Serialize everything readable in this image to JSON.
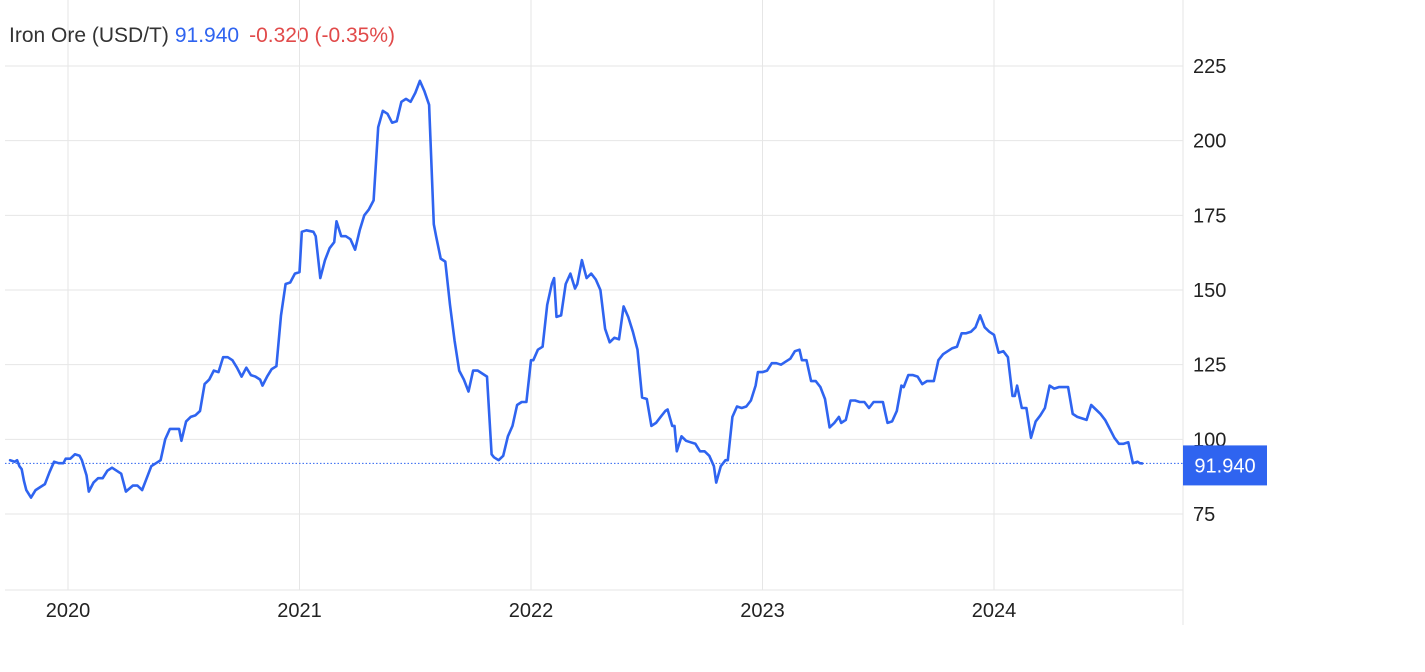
{
  "header": {
    "name": "Iron Ore (USD/T)",
    "price": "91.940",
    "change": "-0.320 (-0.35%)"
  },
  "colors": {
    "line": "#2f64f0",
    "grid": "#e6e6e6",
    "label_bg": "#2f64f0",
    "negative": "#e14a4a"
  },
  "chart_data": {
    "type": "line",
    "title": "Iron Ore (USD/T)",
    "xlabel": "",
    "ylabel": "",
    "grid": true,
    "legend": "none",
    "ylim": [
      55,
      245
    ],
    "xlim": [
      2019.75,
      2024.97
    ],
    "y_ticks": [
      75,
      100,
      125,
      150,
      175,
      200,
      225
    ],
    "y_tick_labels": [
      "75",
      "100",
      "125",
      "150",
      "175",
      "200",
      "225"
    ],
    "x_ticks": [
      2020,
      2021,
      2022,
      2023,
      2024
    ],
    "x_tick_labels": [
      "2020",
      "2021",
      "2022",
      "2023",
      "2024"
    ],
    "last_value": 91.94,
    "last_value_label": "91.940",
    "series": [
      {
        "values": [
          [
            2019.75,
            93
          ],
          [
            2019.77,
            92.5
          ],
          [
            2019.78,
            93
          ],
          [
            2019.79,
            91
          ],
          [
            2019.8,
            90
          ],
          [
            2019.81,
            86
          ],
          [
            2019.82,
            83
          ],
          [
            2019.84,
            80.5
          ],
          [
            2019.86,
            83
          ],
          [
            2019.88,
            84
          ],
          [
            2019.9,
            85
          ],
          [
            2019.92,
            89
          ],
          [
            2019.94,
            92.5
          ],
          [
            2019.96,
            92
          ],
          [
            2019.98,
            92
          ],
          [
            2019.99,
            93.5
          ],
          [
            2020.01,
            93.5
          ],
          [
            2020.03,
            95
          ],
          [
            2020.05,
            94.5
          ],
          [
            2020.06,
            93
          ],
          [
            2020.08,
            88
          ],
          [
            2020.09,
            82.5
          ],
          [
            2020.11,
            85.5
          ],
          [
            2020.13,
            87
          ],
          [
            2020.15,
            87
          ],
          [
            2020.17,
            89.5
          ],
          [
            2020.19,
            90.5
          ],
          [
            2020.21,
            89.5
          ],
          [
            2020.23,
            88.5
          ],
          [
            2020.25,
            82.5
          ],
          [
            2020.28,
            84.5
          ],
          [
            2020.3,
            84.5
          ],
          [
            2020.32,
            83
          ],
          [
            2020.34,
            87
          ],
          [
            2020.36,
            91
          ],
          [
            2020.38,
            92
          ],
          [
            2020.4,
            93
          ],
          [
            2020.42,
            100
          ],
          [
            2020.44,
            103.5
          ],
          [
            2020.46,
            103.5
          ],
          [
            2020.48,
            103.5
          ],
          [
            2020.49,
            99.5
          ],
          [
            2020.51,
            106
          ],
          [
            2020.53,
            107.5
          ],
          [
            2020.55,
            108
          ],
          [
            2020.57,
            109.5
          ],
          [
            2020.59,
            118.5
          ],
          [
            2020.61,
            120
          ],
          [
            2020.63,
            123
          ],
          [
            2020.65,
            122.5
          ],
          [
            2020.67,
            127.5
          ],
          [
            2020.69,
            127.5
          ],
          [
            2020.71,
            126.5
          ],
          [
            2020.73,
            124
          ],
          [
            2020.75,
            121
          ],
          [
            2020.77,
            124
          ],
          [
            2020.79,
            121.5
          ],
          [
            2020.81,
            121
          ],
          [
            2020.83,
            120
          ],
          [
            2020.84,
            118
          ],
          [
            2020.86,
            121
          ],
          [
            2020.88,
            123.5
          ],
          [
            2020.9,
            124.5
          ],
          [
            2020.92,
            141.5
          ],
          [
            2020.94,
            152
          ],
          [
            2020.96,
            152.5
          ],
          [
            2020.98,
            155.5
          ],
          [
            2021.0,
            156
          ],
          [
            2021.01,
            169.5
          ],
          [
            2021.03,
            170
          ],
          [
            2021.06,
            169.5
          ],
          [
            2021.07,
            168
          ],
          [
            2021.09,
            154
          ],
          [
            2021.11,
            160
          ],
          [
            2021.13,
            164
          ],
          [
            2021.15,
            166
          ],
          [
            2021.16,
            173
          ],
          [
            2021.18,
            168
          ],
          [
            2021.2,
            168
          ],
          [
            2021.22,
            167
          ],
          [
            2021.24,
            163.5
          ],
          [
            2021.26,
            170
          ],
          [
            2021.28,
            175
          ],
          [
            2021.3,
            177
          ],
          [
            2021.32,
            180
          ],
          [
            2021.34,
            204.5
          ],
          [
            2021.36,
            210
          ],
          [
            2021.38,
            209
          ],
          [
            2021.4,
            206
          ],
          [
            2021.42,
            206.5
          ],
          [
            2021.44,
            213
          ],
          [
            2021.46,
            214
          ],
          [
            2021.48,
            213
          ],
          [
            2021.5,
            216
          ],
          [
            2021.52,
            220
          ],
          [
            2021.54,
            216.5
          ],
          [
            2021.56,
            212
          ],
          [
            2021.58,
            172
          ],
          [
            2021.59,
            168
          ],
          [
            2021.61,
            160.5
          ],
          [
            2021.63,
            159.5
          ],
          [
            2021.65,
            145
          ],
          [
            2021.67,
            133
          ],
          [
            2021.69,
            123
          ],
          [
            2021.71,
            120
          ],
          [
            2021.73,
            116
          ],
          [
            2021.75,
            123
          ],
          [
            2021.77,
            123
          ],
          [
            2021.79,
            122
          ],
          [
            2021.81,
            121
          ],
          [
            2021.83,
            95
          ],
          [
            2021.84,
            94
          ],
          [
            2021.86,
            93
          ],
          [
            2021.88,
            94.5
          ],
          [
            2021.9,
            101
          ],
          [
            2021.92,
            104.5
          ],
          [
            2021.94,
            111.5
          ],
          [
            2021.96,
            112.5
          ],
          [
            2021.98,
            112.5
          ],
          [
            2022.0,
            126.5
          ],
          [
            2022.01,
            126.5
          ],
          [
            2022.03,
            130
          ],
          [
            2022.05,
            131
          ],
          [
            2022.07,
            145
          ],
          [
            2022.09,
            152
          ],
          [
            2022.1,
            154
          ],
          [
            2022.11,
            141
          ],
          [
            2022.13,
            141.5
          ],
          [
            2022.15,
            152
          ],
          [
            2022.17,
            155.5
          ],
          [
            2022.19,
            150.5
          ],
          [
            2022.2,
            152
          ],
          [
            2022.22,
            160
          ],
          [
            2022.23,
            157
          ],
          [
            2022.24,
            154
          ],
          [
            2022.26,
            155.5
          ],
          [
            2022.28,
            153.5
          ],
          [
            2022.3,
            150
          ],
          [
            2022.32,
            137
          ],
          [
            2022.34,
            132.5
          ],
          [
            2022.36,
            134
          ],
          [
            2022.38,
            133.5
          ],
          [
            2022.4,
            144.5
          ],
          [
            2022.42,
            141
          ],
          [
            2022.44,
            136
          ],
          [
            2022.46,
            130
          ],
          [
            2022.48,
            114
          ],
          [
            2022.5,
            113.5
          ],
          [
            2022.52,
            104.5
          ],
          [
            2022.54,
            105.5
          ],
          [
            2022.56,
            107.5
          ],
          [
            2022.58,
            109.5
          ],
          [
            2022.59,
            110
          ],
          [
            2022.61,
            104.5
          ],
          [
            2022.62,
            104.5
          ],
          [
            2022.63,
            96
          ],
          [
            2022.65,
            101
          ],
          [
            2022.67,
            99.5
          ],
          [
            2022.69,
            99
          ],
          [
            2022.71,
            98.5
          ],
          [
            2022.73,
            96
          ],
          [
            2022.75,
            96
          ],
          [
            2022.77,
            94.5
          ],
          [
            2022.79,
            91
          ],
          [
            2022.8,
            85.5
          ],
          [
            2022.82,
            91
          ],
          [
            2022.84,
            93
          ],
          [
            2022.85,
            93
          ],
          [
            2022.87,
            107.5
          ],
          [
            2022.89,
            111
          ],
          [
            2022.91,
            110.5
          ],
          [
            2022.93,
            111
          ],
          [
            2022.95,
            113
          ],
          [
            2022.97,
            118
          ],
          [
            2022.98,
            122.5
          ],
          [
            2023.0,
            122.5
          ],
          [
            2023.02,
            123
          ],
          [
            2023.04,
            125.5
          ],
          [
            2023.06,
            125.5
          ],
          [
            2023.08,
            125
          ],
          [
            2023.1,
            126
          ],
          [
            2023.12,
            127
          ],
          [
            2023.14,
            129.5
          ],
          [
            2023.16,
            130
          ],
          [
            2023.17,
            126.5
          ],
          [
            2023.19,
            126.5
          ],
          [
            2023.21,
            119.5
          ],
          [
            2023.23,
            119.5
          ],
          [
            2023.25,
            117.5
          ],
          [
            2023.27,
            113.5
          ],
          [
            2023.29,
            104
          ],
          [
            2023.31,
            105.5
          ],
          [
            2023.33,
            107.5
          ],
          [
            2023.34,
            105.5
          ],
          [
            2023.36,
            106.5
          ],
          [
            2023.38,
            113
          ],
          [
            2023.4,
            113
          ],
          [
            2023.42,
            112.5
          ],
          [
            2023.44,
            112.5
          ],
          [
            2023.46,
            110.5
          ],
          [
            2023.48,
            112.5
          ],
          [
            2023.5,
            112.5
          ],
          [
            2023.52,
            112.5
          ],
          [
            2023.54,
            105.5
          ],
          [
            2023.56,
            106
          ],
          [
            2023.58,
            109.5
          ],
          [
            2023.6,
            118
          ],
          [
            2023.61,
            117.5
          ],
          [
            2023.63,
            121.5
          ],
          [
            2023.65,
            121.5
          ],
          [
            2023.67,
            121
          ],
          [
            2023.69,
            118.5
          ],
          [
            2023.71,
            119.5
          ],
          [
            2023.74,
            119.5
          ],
          [
            2023.76,
            126.5
          ],
          [
            2023.78,
            128.5
          ],
          [
            2023.8,
            129.5
          ],
          [
            2023.82,
            130.5
          ],
          [
            2023.84,
            131
          ],
          [
            2023.86,
            135.5
          ],
          [
            2023.88,
            135.5
          ],
          [
            2023.9,
            136
          ],
          [
            2023.92,
            137.5
          ],
          [
            2023.94,
            141.5
          ],
          [
            2023.96,
            137.5
          ],
          [
            2023.98,
            136
          ],
          [
            2024.0,
            135
          ],
          [
            2024.02,
            129
          ],
          [
            2024.04,
            129.5
          ],
          [
            2024.06,
            127.5
          ],
          [
            2024.08,
            114.5
          ],
          [
            2024.09,
            114.5
          ],
          [
            2024.1,
            118
          ],
          [
            2024.12,
            110.5
          ],
          [
            2024.14,
            110.5
          ],
          [
            2024.16,
            100.5
          ],
          [
            2024.18,
            106
          ],
          [
            2024.2,
            108
          ],
          [
            2024.22,
            110.5
          ],
          [
            2024.24,
            118
          ],
          [
            2024.26,
            117
          ],
          [
            2024.28,
            117.5
          ],
          [
            2024.3,
            117.5
          ],
          [
            2024.32,
            117.5
          ],
          [
            2024.34,
            108.5
          ],
          [
            2024.36,
            107.5
          ],
          [
            2024.38,
            107
          ],
          [
            2024.4,
            106.5
          ],
          [
            2024.42,
            111.5
          ],
          [
            2024.44,
            110
          ],
          [
            2024.46,
            108.5
          ],
          [
            2024.48,
            106.5
          ],
          [
            2024.5,
            103.5
          ],
          [
            2024.52,
            100.5
          ],
          [
            2024.54,
            98.5
          ],
          [
            2024.56,
            98.5
          ],
          [
            2024.58,
            99
          ],
          [
            2024.6,
            92
          ],
          [
            2024.62,
            92.5
          ],
          [
            2024.63,
            92
          ],
          [
            2024.64,
            91.94
          ]
        ]
      }
    ]
  }
}
